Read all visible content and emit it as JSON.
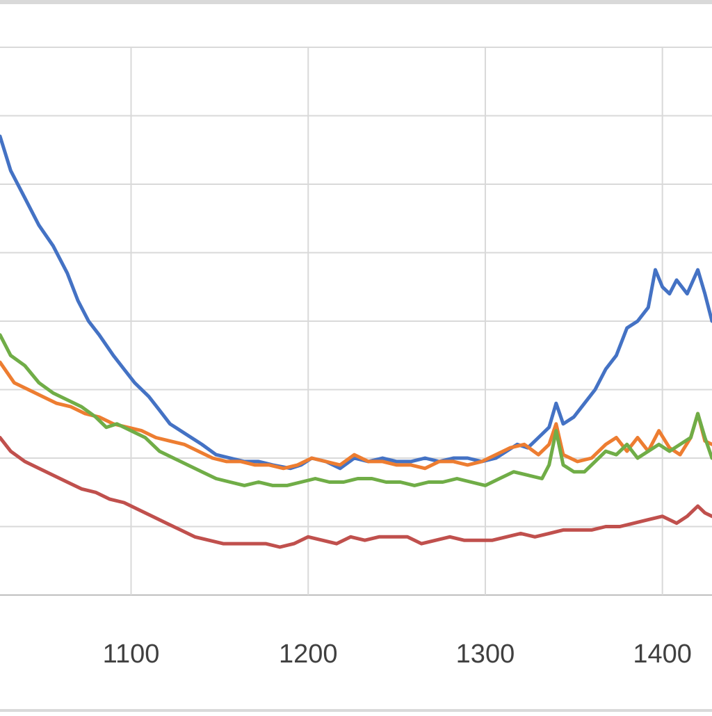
{
  "chart_data": {
    "type": "line",
    "title": "",
    "xlabel": "",
    "ylabel": "",
    "xlim": [
      1026,
      1428
    ],
    "ylim": [
      0,
      8
    ],
    "x_ticks": [
      1100,
      1200,
      1300,
      1400
    ],
    "y_gridlines": [
      0,
      1,
      2,
      3,
      4,
      5,
      6,
      7,
      8
    ],
    "grid": true,
    "legend": "none",
    "series": [
      {
        "color": "#4472C4",
        "points": [
          [
            1026,
            6.7
          ],
          [
            1032,
            6.2
          ],
          [
            1040,
            5.8
          ],
          [
            1048,
            5.4
          ],
          [
            1056,
            5.1
          ],
          [
            1064,
            4.7
          ],
          [
            1070,
            4.3
          ],
          [
            1076,
            4.0
          ],
          [
            1082,
            3.8
          ],
          [
            1090,
            3.5
          ],
          [
            1096,
            3.3
          ],
          [
            1102,
            3.1
          ],
          [
            1110,
            2.9
          ],
          [
            1116,
            2.7
          ],
          [
            1122,
            2.5
          ],
          [
            1128,
            2.4
          ],
          [
            1134,
            2.3
          ],
          [
            1140,
            2.2
          ],
          [
            1148,
            2.05
          ],
          [
            1156,
            2.0
          ],
          [
            1164,
            1.95
          ],
          [
            1172,
            1.95
          ],
          [
            1180,
            1.9
          ],
          [
            1190,
            1.85
          ],
          [
            1196,
            1.9
          ],
          [
            1202,
            2.0
          ],
          [
            1210,
            1.95
          ],
          [
            1218,
            1.85
          ],
          [
            1226,
            2.0
          ],
          [
            1234,
            1.95
          ],
          [
            1242,
            2.0
          ],
          [
            1250,
            1.95
          ],
          [
            1258,
            1.95
          ],
          [
            1266,
            2.0
          ],
          [
            1274,
            1.95
          ],
          [
            1282,
            2.0
          ],
          [
            1290,
            2.0
          ],
          [
            1298,
            1.95
          ],
          [
            1306,
            2.0
          ],
          [
            1312,
            2.1
          ],
          [
            1318,
            2.2
          ],
          [
            1324,
            2.15
          ],
          [
            1330,
            2.3
          ],
          [
            1336,
            2.45
          ],
          [
            1340,
            2.8
          ],
          [
            1344,
            2.5
          ],
          [
            1350,
            2.6
          ],
          [
            1356,
            2.8
          ],
          [
            1362,
            3.0
          ],
          [
            1368,
            3.3
          ],
          [
            1374,
            3.5
          ],
          [
            1380,
            3.9
          ],
          [
            1386,
            4.0
          ],
          [
            1392,
            4.2
          ],
          [
            1396,
            4.75
          ],
          [
            1400,
            4.5
          ],
          [
            1404,
            4.4
          ],
          [
            1408,
            4.6
          ],
          [
            1414,
            4.4
          ],
          [
            1420,
            4.75
          ],
          [
            1424,
            4.4
          ],
          [
            1428,
            4.0
          ]
        ]
      },
      {
        "color": "#ED7D31",
        "points": [
          [
            1026,
            3.4
          ],
          [
            1034,
            3.1
          ],
          [
            1042,
            3.0
          ],
          [
            1050,
            2.9
          ],
          [
            1058,
            2.8
          ],
          [
            1066,
            2.75
          ],
          [
            1074,
            2.65
          ],
          [
            1082,
            2.6
          ],
          [
            1090,
            2.5
          ],
          [
            1098,
            2.45
          ],
          [
            1106,
            2.4
          ],
          [
            1114,
            2.3
          ],
          [
            1122,
            2.25
          ],
          [
            1130,
            2.2
          ],
          [
            1138,
            2.1
          ],
          [
            1146,
            2.0
          ],
          [
            1154,
            1.95
          ],
          [
            1162,
            1.95
          ],
          [
            1170,
            1.9
          ],
          [
            1178,
            1.9
          ],
          [
            1186,
            1.85
          ],
          [
            1194,
            1.9
          ],
          [
            1202,
            2.0
          ],
          [
            1210,
            1.95
          ],
          [
            1218,
            1.9
          ],
          [
            1226,
            2.05
          ],
          [
            1234,
            1.95
          ],
          [
            1242,
            1.95
          ],
          [
            1250,
            1.9
          ],
          [
            1258,
            1.9
          ],
          [
            1266,
            1.85
          ],
          [
            1274,
            1.95
          ],
          [
            1282,
            1.95
          ],
          [
            1290,
            1.9
          ],
          [
            1298,
            1.95
          ],
          [
            1306,
            2.05
          ],
          [
            1314,
            2.15
          ],
          [
            1322,
            2.2
          ],
          [
            1330,
            2.05
          ],
          [
            1336,
            2.2
          ],
          [
            1340,
            2.5
          ],
          [
            1344,
            2.05
          ],
          [
            1352,
            1.95
          ],
          [
            1360,
            2.0
          ],
          [
            1368,
            2.2
          ],
          [
            1374,
            2.3
          ],
          [
            1380,
            2.1
          ],
          [
            1386,
            2.3
          ],
          [
            1392,
            2.1
          ],
          [
            1398,
            2.4
          ],
          [
            1404,
            2.15
          ],
          [
            1410,
            2.05
          ],
          [
            1416,
            2.3
          ],
          [
            1420,
            2.65
          ],
          [
            1424,
            2.25
          ],
          [
            1428,
            2.2
          ]
        ]
      },
      {
        "color": "#70AD47",
        "points": [
          [
            1026,
            3.8
          ],
          [
            1032,
            3.5
          ],
          [
            1040,
            3.35
          ],
          [
            1048,
            3.1
          ],
          [
            1056,
            2.95
          ],
          [
            1064,
            2.85
          ],
          [
            1072,
            2.75
          ],
          [
            1080,
            2.6
          ],
          [
            1086,
            2.45
          ],
          [
            1092,
            2.5
          ],
          [
            1100,
            2.4
          ],
          [
            1108,
            2.3
          ],
          [
            1116,
            2.1
          ],
          [
            1124,
            2.0
          ],
          [
            1132,
            1.9
          ],
          [
            1140,
            1.8
          ],
          [
            1148,
            1.7
          ],
          [
            1156,
            1.65
          ],
          [
            1164,
            1.6
          ],
          [
            1172,
            1.65
          ],
          [
            1180,
            1.6
          ],
          [
            1188,
            1.6
          ],
          [
            1196,
            1.65
          ],
          [
            1204,
            1.7
          ],
          [
            1212,
            1.65
          ],
          [
            1220,
            1.65
          ],
          [
            1228,
            1.7
          ],
          [
            1236,
            1.7
          ],
          [
            1244,
            1.65
          ],
          [
            1252,
            1.65
          ],
          [
            1260,
            1.6
          ],
          [
            1268,
            1.65
          ],
          [
            1276,
            1.65
          ],
          [
            1284,
            1.7
          ],
          [
            1292,
            1.65
          ],
          [
            1300,
            1.6
          ],
          [
            1308,
            1.7
          ],
          [
            1316,
            1.8
          ],
          [
            1324,
            1.75
          ],
          [
            1332,
            1.7
          ],
          [
            1336,
            1.9
          ],
          [
            1340,
            2.4
          ],
          [
            1344,
            1.9
          ],
          [
            1350,
            1.8
          ],
          [
            1356,
            1.8
          ],
          [
            1362,
            1.95
          ],
          [
            1368,
            2.1
          ],
          [
            1374,
            2.05
          ],
          [
            1380,
            2.2
          ],
          [
            1386,
            2.0
          ],
          [
            1392,
            2.1
          ],
          [
            1398,
            2.2
          ],
          [
            1404,
            2.1
          ],
          [
            1410,
            2.2
          ],
          [
            1416,
            2.3
          ],
          [
            1420,
            2.65
          ],
          [
            1424,
            2.3
          ],
          [
            1428,
            2.0
          ]
        ]
      },
      {
        "color": "#C0504D",
        "points": [
          [
            1026,
            2.3
          ],
          [
            1032,
            2.1
          ],
          [
            1040,
            1.95
          ],
          [
            1048,
            1.85
          ],
          [
            1056,
            1.75
          ],
          [
            1064,
            1.65
          ],
          [
            1072,
            1.55
          ],
          [
            1080,
            1.5
          ],
          [
            1088,
            1.4
          ],
          [
            1096,
            1.35
          ],
          [
            1104,
            1.25
          ],
          [
            1112,
            1.15
          ],
          [
            1120,
            1.05
          ],
          [
            1128,
            0.95
          ],
          [
            1136,
            0.85
          ],
          [
            1144,
            0.8
          ],
          [
            1152,
            0.75
          ],
          [
            1160,
            0.75
          ],
          [
            1168,
            0.75
          ],
          [
            1176,
            0.75
          ],
          [
            1184,
            0.7
          ],
          [
            1192,
            0.75
          ],
          [
            1200,
            0.85
          ],
          [
            1208,
            0.8
          ],
          [
            1216,
            0.75
          ],
          [
            1224,
            0.85
          ],
          [
            1232,
            0.8
          ],
          [
            1240,
            0.85
          ],
          [
            1248,
            0.85
          ],
          [
            1256,
            0.85
          ],
          [
            1264,
            0.75
          ],
          [
            1272,
            0.8
          ],
          [
            1280,
            0.85
          ],
          [
            1288,
            0.8
          ],
          [
            1296,
            0.8
          ],
          [
            1304,
            0.8
          ],
          [
            1312,
            0.85
          ],
          [
            1320,
            0.9
          ],
          [
            1328,
            0.85
          ],
          [
            1336,
            0.9
          ],
          [
            1344,
            0.95
          ],
          [
            1352,
            0.95
          ],
          [
            1360,
            0.95
          ],
          [
            1368,
            1.0
          ],
          [
            1376,
            1.0
          ],
          [
            1384,
            1.05
          ],
          [
            1392,
            1.1
          ],
          [
            1400,
            1.15
          ],
          [
            1408,
            1.05
          ],
          [
            1414,
            1.15
          ],
          [
            1420,
            1.3
          ],
          [
            1424,
            1.2
          ],
          [
            1428,
            1.15
          ]
        ]
      }
    ]
  }
}
